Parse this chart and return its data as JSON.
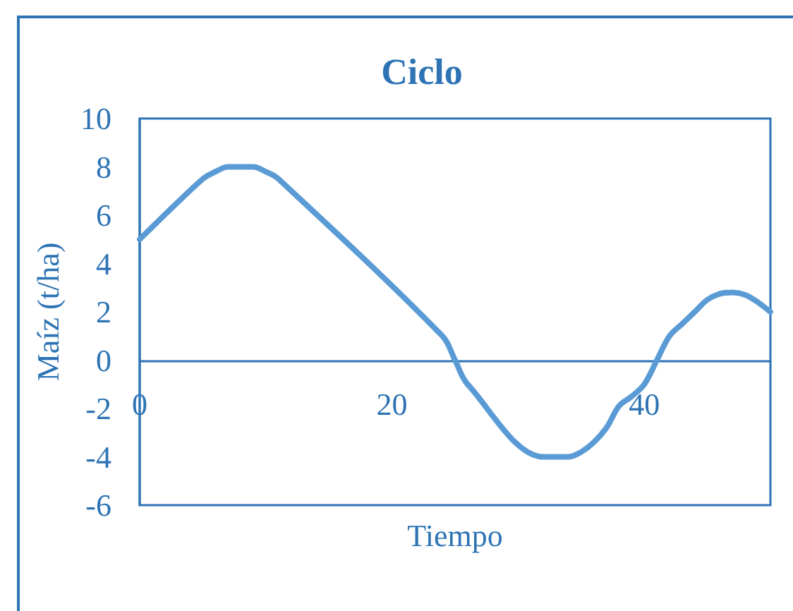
{
  "chart_data": {
    "type": "line",
    "title": "Ciclo",
    "xlabel": "Tiempo",
    "ylabel": "Maíz (t/ha)",
    "x": [
      0,
      5,
      6,
      7,
      8,
      9,
      10,
      11,
      24,
      25,
      26,
      32,
      33,
      34,
      35,
      36,
      37,
      38,
      39,
      40,
      41,
      42,
      43,
      44,
      45,
      46,
      47,
      48,
      49,
      50
    ],
    "series": [
      {
        "color": "#5b9bd5",
        "values": [
          5,
          7.5,
          7.8,
          8,
          8,
          8,
          7.8,
          7.5,
          1,
          0,
          -1,
          -4,
          -4,
          -4,
          -3.8,
          -3.4,
          -2.8,
          -1.9,
          -1.5,
          -1,
          0,
          1,
          1.5,
          2,
          2.5,
          2.75,
          2.8,
          2.7,
          2.4,
          2
        ]
      }
    ],
    "xlim": [
      0,
      50
    ],
    "xticks": [
      0,
      20,
      40
    ],
    "ylim": [
      -6,
      10
    ],
    "yticks": [
      -6,
      -4,
      -2,
      0,
      2,
      4,
      6,
      8,
      10
    ],
    "marker": "none"
  }
}
